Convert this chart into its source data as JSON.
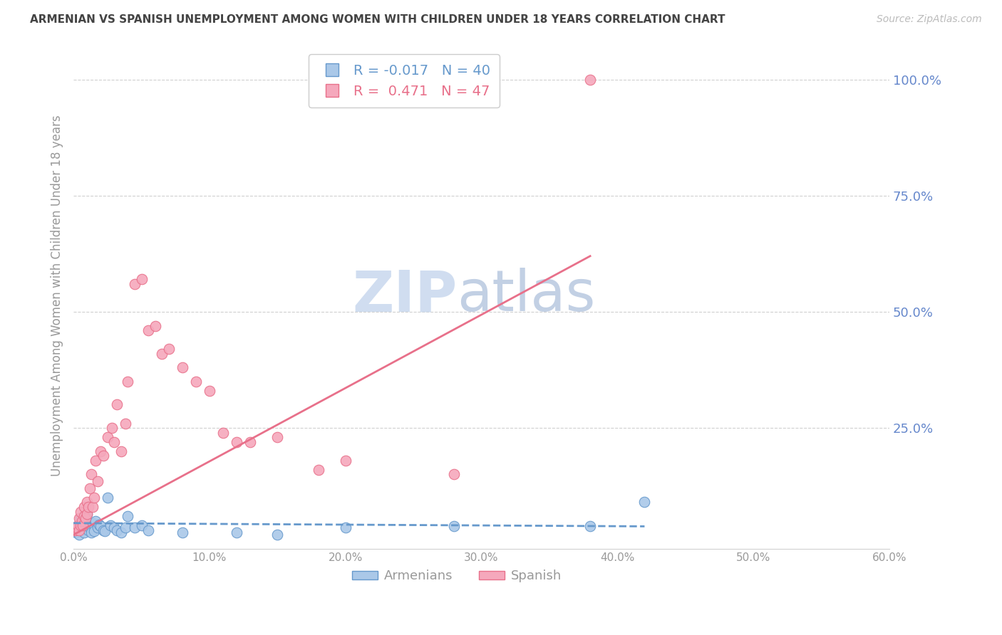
{
  "title": "ARMENIAN VS SPANISH UNEMPLOYMENT AMONG WOMEN WITH CHILDREN UNDER 18 YEARS CORRELATION CHART",
  "source": "Source: ZipAtlas.com",
  "ylabel": "Unemployment Among Women with Children Under 18 years",
  "xlim": [
    0.0,
    0.6
  ],
  "ylim": [
    -0.01,
    1.08
  ],
  "xticks": [
    0.0,
    0.1,
    0.2,
    0.3,
    0.4,
    0.5,
    0.6
  ],
  "yticks_right": [
    0.25,
    0.5,
    0.75,
    1.0
  ],
  "armenian_R": -0.017,
  "armenian_N": 40,
  "spanish_R": 0.471,
  "spanish_N": 47,
  "armenian_color": "#aac8e8",
  "spanish_color": "#f5a8bc",
  "armenian_line_color": "#6699cc",
  "spanish_line_color": "#e8708a",
  "background_color": "#ffffff",
  "grid_color": "#d0d0d0",
  "title_color": "#444444",
  "axis_label_color": "#999999",
  "right_tick_color": "#6688cc",
  "watermark_color": "#dde8f5",
  "armenian_x": [
    0.002,
    0.003,
    0.004,
    0.005,
    0.005,
    0.006,
    0.007,
    0.008,
    0.008,
    0.009,
    0.01,
    0.01,
    0.011,
    0.012,
    0.013,
    0.014,
    0.015,
    0.016,
    0.018,
    0.019,
    0.02,
    0.022,
    0.023,
    0.025,
    0.027,
    0.03,
    0.032,
    0.035,
    0.038,
    0.04,
    0.045,
    0.05,
    0.055,
    0.08,
    0.12,
    0.15,
    0.2,
    0.28,
    0.38,
    0.42
  ],
  "armenian_y": [
    0.025,
    0.03,
    0.02,
    0.04,
    0.055,
    0.045,
    0.035,
    0.06,
    0.025,
    0.05,
    0.038,
    0.065,
    0.03,
    0.035,
    0.025,
    0.045,
    0.028,
    0.05,
    0.035,
    0.042,
    0.038,
    0.03,
    0.028,
    0.1,
    0.04,
    0.035,
    0.03,
    0.025,
    0.035,
    0.06,
    0.035,
    0.04,
    0.03,
    0.025,
    0.025,
    0.02,
    0.035,
    0.038,
    0.038,
    0.09
  ],
  "spanish_x": [
    0.001,
    0.002,
    0.003,
    0.004,
    0.004,
    0.005,
    0.005,
    0.006,
    0.007,
    0.008,
    0.008,
    0.009,
    0.01,
    0.01,
    0.011,
    0.012,
    0.013,
    0.014,
    0.015,
    0.016,
    0.018,
    0.02,
    0.022,
    0.025,
    0.028,
    0.03,
    0.032,
    0.035,
    0.038,
    0.04,
    0.045,
    0.05,
    0.055,
    0.06,
    0.065,
    0.07,
    0.08,
    0.09,
    0.1,
    0.11,
    0.12,
    0.13,
    0.15,
    0.18,
    0.2,
    0.28,
    0.38
  ],
  "spanish_y": [
    0.03,
    0.035,
    0.04,
    0.03,
    0.055,
    0.04,
    0.07,
    0.05,
    0.04,
    0.06,
    0.08,
    0.055,
    0.065,
    0.09,
    0.08,
    0.12,
    0.15,
    0.08,
    0.1,
    0.18,
    0.135,
    0.2,
    0.19,
    0.23,
    0.25,
    0.22,
    0.3,
    0.2,
    0.26,
    0.35,
    0.56,
    0.57,
    0.46,
    0.47,
    0.41,
    0.42,
    0.38,
    0.35,
    0.33,
    0.24,
    0.22,
    0.22,
    0.23,
    0.16,
    0.18,
    0.15,
    1.0
  ],
  "spanish_trend_x": [
    0.0,
    0.38
  ],
  "spanish_trend_y": [
    0.02,
    0.62
  ],
  "armenian_trend_x": [
    0.0,
    0.42
  ],
  "armenian_trend_y": [
    0.045,
    0.038
  ]
}
